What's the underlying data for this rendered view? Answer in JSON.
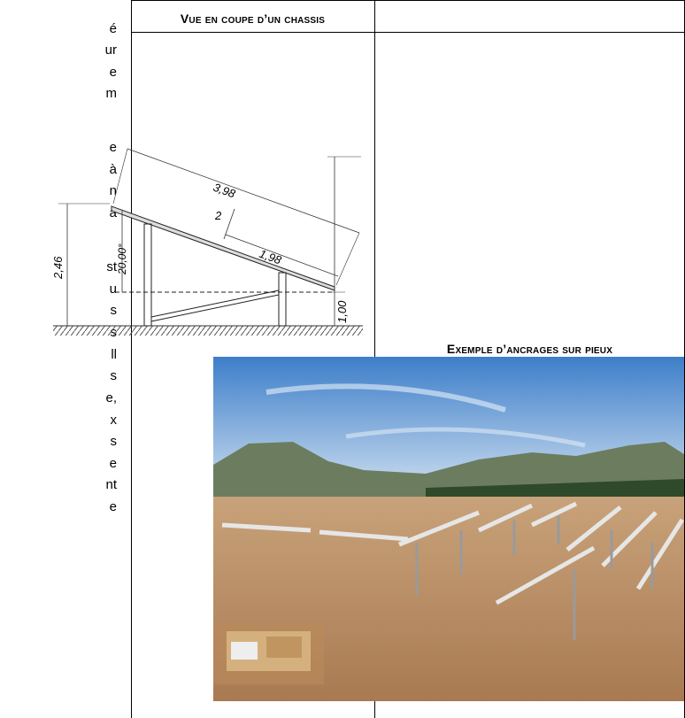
{
  "left_fragments": [
    "é",
    "ur",
    "e",
    "m",
    "e",
    "à",
    "n",
    "a",
    "st",
    "u",
    "s",
    "s",
    "ll",
    "s",
    "e,",
    "x",
    "s",
    "e",
    "nt",
    "e"
  ],
  "table": {
    "col1_header": "Vue en coupe d’un chassis",
    "col2_header": ""
  },
  "diagram": {
    "dim_length": "3,98",
    "dim_small": "2",
    "dim_partial": "1,98",
    "angle": "20,00°",
    "height_total": "2,46",
    "height_low": "1,00"
  },
  "photo_caption": "Exemple d’ancrages sur pieux"
}
